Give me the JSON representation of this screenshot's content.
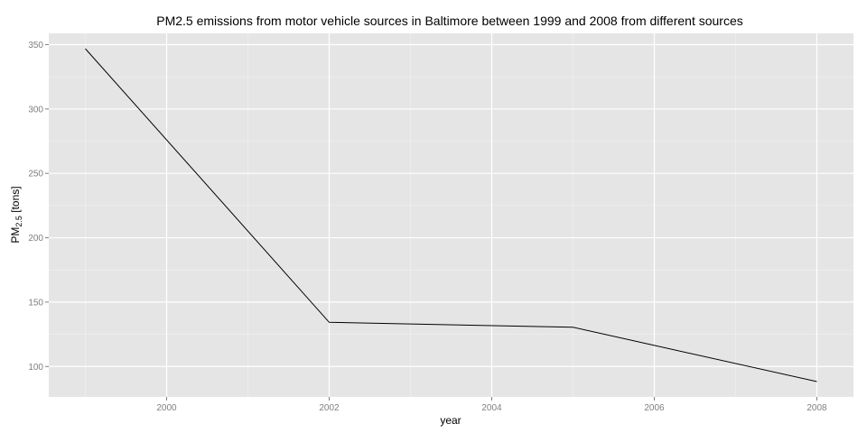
{
  "chart_data": {
    "type": "line",
    "title": "PM2.5 emissions from motor vehicle sources in Baltimore between 1999 and 2008 from different sources",
    "xlabel": "year",
    "ylabel_main": "PM",
    "ylabel_sub": "2.5",
    "ylabel_unit": " [tons]",
    "x": [
      1999,
      2002,
      2005,
      2008
    ],
    "y": [
      346.82,
      134.31,
      130.43,
      88.28
    ],
    "xlim": [
      1998.55,
      2008.45
    ],
    "ylim": [
      76.36,
      358.74
    ],
    "xticks": [
      2000,
      2002,
      2004,
      2006,
      2008
    ],
    "xtick_labels": [
      "2000",
      "2002",
      "2004",
      "2006",
      "2008"
    ],
    "yticks": [
      100,
      150,
      200,
      250,
      300,
      350
    ],
    "ytick_labels": [
      "100",
      "150",
      "200",
      "250",
      "300",
      "350"
    ],
    "grid": true,
    "line_color": "#000000",
    "panel_background": "#e5e5e5",
    "grid_color": "#ffffff",
    "tick_label_color": "#7f7f7f"
  }
}
